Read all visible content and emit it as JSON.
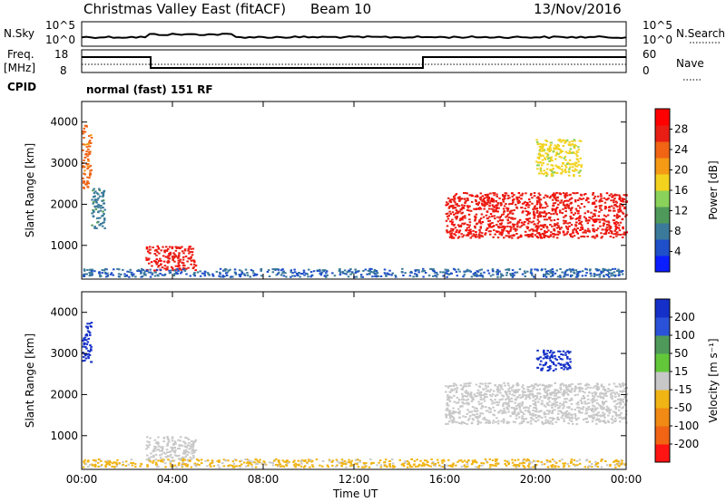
{
  "header": {
    "station": "Christmas Valley East (fitACF)",
    "beam": "Beam 10",
    "date": "13/Nov/2016"
  },
  "strip_labels": {
    "nsky": "N.Sky",
    "nsky_ticks": [
      "10^5",
      "10^0"
    ],
    "nsearch": "N.Search",
    "nsearch_ticks": [
      "10^5",
      "10^0"
    ],
    "freq": "Freq.",
    "freq_unit": "[MHz]",
    "freq_ticks": [
      "18",
      "8"
    ],
    "nave": "Nave",
    "nave_ticks": [
      "60",
      "0"
    ],
    "cpid": "CPID",
    "cpid_value": "normal (fast) 151 RF"
  },
  "colors": {
    "power_scale": [
      "#0a1eff",
      "#1f4fc9",
      "#3b7a9a",
      "#4f9a5a",
      "#8ad25a",
      "#f2d21e",
      "#f59a14",
      "#f06414",
      "#e81e14",
      "#ff0000"
    ],
    "velocity_scale": [
      "#1430c8",
      "#2a52d8",
      "#4f9a5a",
      "#62c83a",
      "#c8c8c8",
      "#f0b414",
      "#f08a14",
      "#f06414",
      "#ff1414"
    ],
    "ground_scatter": "#c0c0b8"
  },
  "chart_data": [
    {
      "type": "heatmap",
      "ylabel": "Slant Range [km]",
      "xlabel": "Time UT",
      "x_ticks": [
        "00:00",
        "04:00",
        "08:00",
        "12:00",
        "16:00",
        "20:00",
        "00:00"
      ],
      "x_range_hours": [
        0,
        24
      ],
      "ylim": [
        180,
        4500
      ],
      "y_ticks": [
        1000,
        2000,
        3000,
        4000
      ],
      "colorbar": {
        "label": "Power [dB]",
        "ticks": [
          "4",
          "8",
          "12",
          "16",
          "20",
          "24",
          "28"
        ],
        "range": [
          0,
          30
        ]
      },
      "features": [
        {
          "t0": 0.0,
          "t1": 0.4,
          "r0": 2400,
          "r1": 4000,
          "value": 22
        },
        {
          "t0": 0.4,
          "t1": 1.0,
          "r0": 1400,
          "r1": 2400,
          "value": 8
        },
        {
          "t0": 2.8,
          "t1": 5.0,
          "r0": 400,
          "r1": 1000,
          "value": 26
        },
        {
          "t0": 0.0,
          "t1": 24.0,
          "r0": 250,
          "r1": 450,
          "value": 6
        },
        {
          "t0": 16.0,
          "t1": 24.0,
          "r0": 1200,
          "r1": 2300,
          "value": 26
        },
        {
          "t0": 20.0,
          "t1": 22.0,
          "r0": 2700,
          "r1": 3600,
          "value": 16
        }
      ]
    },
    {
      "type": "heatmap",
      "ylabel": "Slant Range [km]",
      "xlabel": "Time UT",
      "x_ticks": [
        "00:00",
        "04:00",
        "08:00",
        "12:00",
        "16:00",
        "20:00",
        "00:00"
      ],
      "x_range_hours": [
        0,
        24
      ],
      "ylim": [
        180,
        4500
      ],
      "y_ticks": [
        1000,
        2000,
        3000,
        4000
      ],
      "colorbar": {
        "label": "Velocity [m s⁻¹]",
        "ticks": [
          "200",
          "100",
          "50",
          "15",
          "-15",
          "-50",
          "-100",
          "-200"
        ],
        "range": [
          -250,
          250
        ]
      },
      "features": [
        {
          "t0": 0.0,
          "t1": 0.4,
          "r0": 2800,
          "r1": 3800,
          "value": 220
        },
        {
          "t0": 2.8,
          "t1": 5.0,
          "r0": 400,
          "r1": 1000,
          "value": 0
        },
        {
          "t0": 0.0,
          "t1": 24.0,
          "r0": 250,
          "r1": 450,
          "value": -40
        },
        {
          "t0": 16.0,
          "t1": 24.0,
          "r0": 1300,
          "r1": 2300,
          "value": 0
        },
        {
          "t0": 20.0,
          "t1": 21.5,
          "r0": 2600,
          "r1": 3100,
          "value": 220
        }
      ]
    }
  ]
}
